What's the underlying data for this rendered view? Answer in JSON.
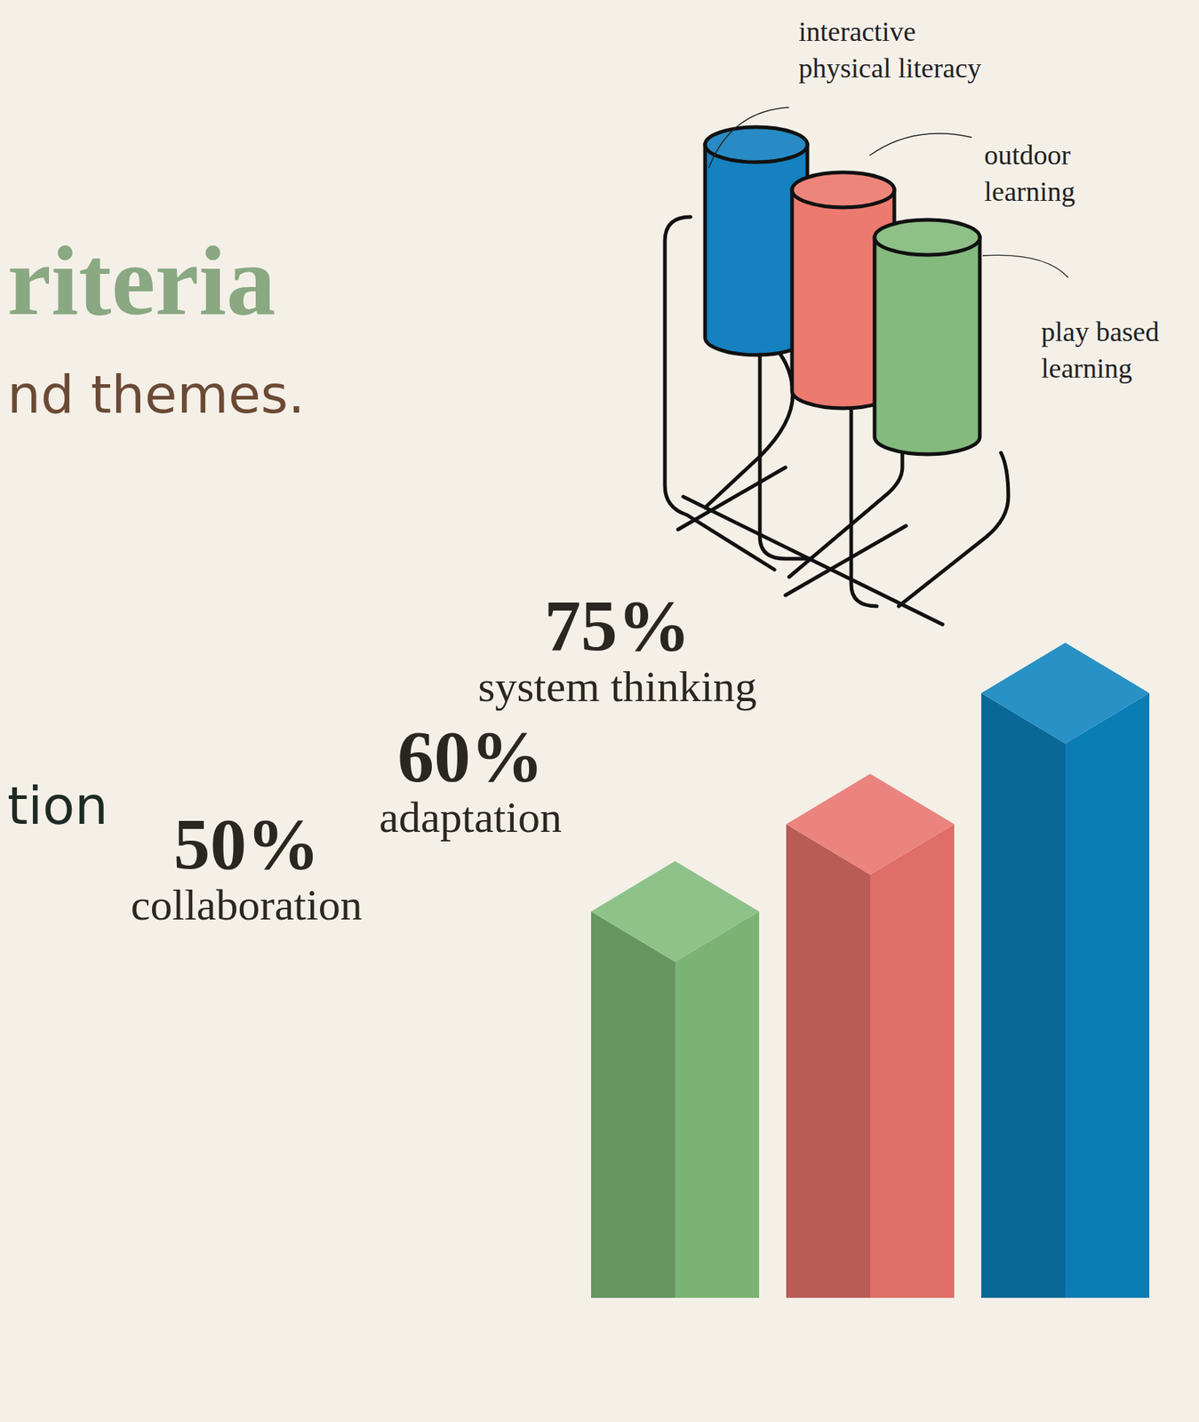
{
  "chart_data": {
    "type": "bar",
    "title": "riteria",
    "subtitle": "nd themes.",
    "annotations": [
      "tion"
    ],
    "categories": [
      "collaboration",
      "adaptation",
      "system thinking"
    ],
    "values": [
      50,
      60,
      75
    ],
    "value_labels": [
      "50%",
      "60%",
      "75%"
    ],
    "colors": [
      "#7fba79",
      "#e8736c",
      "#0b82bd"
    ],
    "ylim": [
      0,
      75
    ],
    "data_labels": true,
    "tick_labels": false
  },
  "cylinders": [
    {
      "label": "interactive physical literacy",
      "color": "#1581c0"
    },
    {
      "label": "outdoor learning",
      "color": "#ec7a6f"
    },
    {
      "label": "play based learning",
      "color": "#84ba7e"
    }
  ]
}
